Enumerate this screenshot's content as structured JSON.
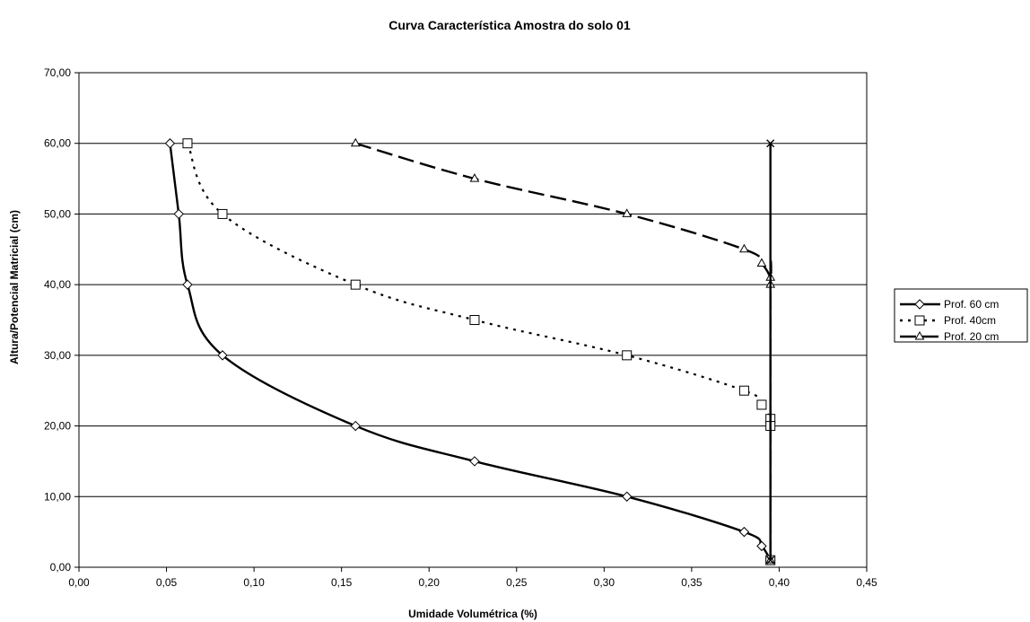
{
  "chart_data": {
    "type": "line",
    "title": "Curva Característica Amostra do solo 01",
    "xlabel": "Umidade Volumétrica (%)",
    "ylabel": "Altura/Potencial Matricial (cm)",
    "xlim": [
      0,
      0.45
    ],
    "ylim": [
      0,
      70
    ],
    "x_ticks": [
      "0,00",
      "0,05",
      "0,10",
      "0,15",
      "0,20",
      "0,25",
      "0,30",
      "0,35",
      "0,40",
      "0,45"
    ],
    "y_ticks": [
      "0,00",
      "10,00",
      "20,00",
      "30,00",
      "40,00",
      "50,00",
      "60,00",
      "70,00"
    ],
    "grid": "horizontal",
    "legend_position": "right",
    "series": [
      {
        "name": "Prof. 60 cm",
        "line_style": "solid",
        "marker": "diamond",
        "color": "#000000",
        "points": [
          [
            0.052,
            60
          ],
          [
            0.057,
            50
          ],
          [
            0.062,
            40
          ],
          [
            0.082,
            30
          ],
          [
            0.158,
            20
          ],
          [
            0.226,
            15
          ],
          [
            0.313,
            10
          ],
          [
            0.38,
            5
          ],
          [
            0.39,
            3
          ],
          [
            0.395,
            1
          ]
        ]
      },
      {
        "name": "Prof. 40cm",
        "line_style": "dotted",
        "marker": "square",
        "color": "#000000",
        "points": [
          [
            0.062,
            60
          ],
          [
            0.082,
            50
          ],
          [
            0.158,
            40
          ],
          [
            0.226,
            35
          ],
          [
            0.313,
            30
          ],
          [
            0.38,
            25
          ],
          [
            0.39,
            23
          ],
          [
            0.395,
            21
          ],
          [
            0.395,
            20
          ],
          [
            0.395,
            1
          ]
        ]
      },
      {
        "name": "Prof. 20 cm",
        "line_style": "dashed",
        "marker": "triangle",
        "color": "#000000",
        "points": [
          [
            0.158,
            60
          ],
          [
            0.226,
            55
          ],
          [
            0.313,
            50
          ],
          [
            0.38,
            45
          ],
          [
            0.39,
            43
          ],
          [
            0.395,
            41
          ],
          [
            0.395,
            40
          ],
          [
            0.395,
            1
          ]
        ]
      },
      {
        "name": "",
        "line_style": "solid",
        "marker": "x",
        "color": "#000000",
        "points": [
          [
            0.395,
            60
          ],
          [
            0.395,
            1
          ]
        ]
      }
    ]
  }
}
